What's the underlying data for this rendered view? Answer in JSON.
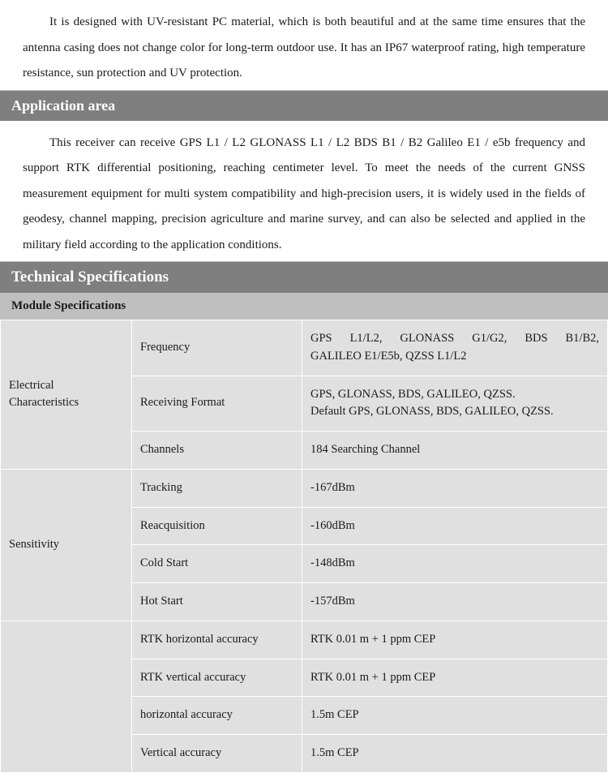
{
  "intro_para": "It is designed with UV-resistant PC material, which is both beautiful and at the same time ensures that the antenna casing does not change color for long-term outdoor use. It has an IP67 waterproof rating, high temperature resistance, sun protection and UV protection.",
  "application": {
    "heading": "Application area",
    "para": "This receiver can receive GPS L1 / L2 GLONASS L1 / L2 BDS B1 / B2 Galileo E1 / e5b frequency and support RTK differential positioning, reaching centimeter level. To meet the needs of the current GNSS measurement equipment for multi system compatibility and high-precision users, it is widely used in the fields of geodesy, channel mapping, precision agriculture and marine survey, and can also be selected and applied in the military field according to the application conditions."
  },
  "tech": {
    "heading": "Technical Specifications",
    "module_heading": "Module Specifications",
    "groups": [
      {
        "category": "Electrical Characteristics",
        "rows": [
          {
            "label": "Frequency",
            "value_lines": [
              "GPS L1/L2, GLONASS G1/G2, BDS B1/B2,",
              "GALILEO E1/E5b, QZSS L1/L2"
            ]
          },
          {
            "label": "Receiving Format",
            "value_lines": [
              "GPS, GLONASS, BDS, GALILEO, QZSS.",
              "Default GPS, GLONASS, BDS, GALILEO, QZSS."
            ]
          },
          {
            "label": "Channels",
            "value": "184 Searching Channel"
          }
        ]
      },
      {
        "category": "Sensitivity",
        "rows": [
          {
            "label": "Tracking",
            "value": "-167dBm"
          },
          {
            "label": "Reacquisition",
            "value": "-160dBm"
          },
          {
            "label": "Cold Start",
            "value": "-148dBm"
          },
          {
            "label": "Hot Start",
            "value": "-157dBm"
          }
        ]
      },
      {
        "category": "",
        "rows": [
          {
            "label": "RTK horizontal accuracy",
            "value": "RTK 0.01 m + 1 ppm CEP"
          },
          {
            "label": "RTK vertical accuracy",
            "value": "RTK 0.01 m + 1 ppm CEP"
          },
          {
            "label": "horizontal accuracy",
            "value": "1.5m CEP"
          },
          {
            "label": "Vertical accuracy",
            "value": "1.5m CEP"
          }
        ]
      }
    ]
  }
}
